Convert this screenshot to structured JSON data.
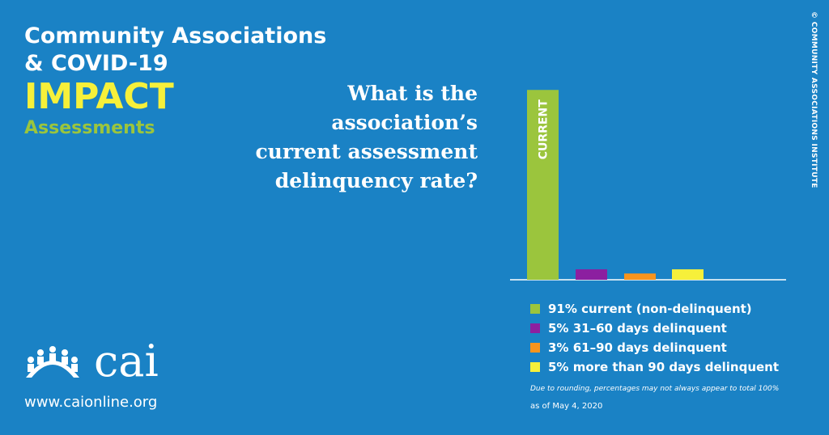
{
  "header": {
    "title_line1": "Community Associations",
    "title_line2": "& COVID-19",
    "impact": "IMPACT",
    "topic": "Assessments"
  },
  "question": {
    "line1": "What is the",
    "line2": "association’s",
    "line3": "current assessment",
    "line4": "delinquency rate?"
  },
  "copyright": "© COMMUNITY ASSOCIATIONS INSTITUTE",
  "chart_data": {
    "type": "bar",
    "categories": [
      "current",
      "31–60 days",
      "61–90 days",
      "more than 90 days"
    ],
    "values": [
      91,
      5,
      3,
      5
    ],
    "colors": [
      "#9bc53d",
      "#8c1fa0",
      "#f7941d",
      "#f6f03a"
    ],
    "bar_label": "CURRENT",
    "ylim": [
      0,
      100
    ],
    "grid": false
  },
  "legend": {
    "items": [
      {
        "label": "91% current (non-delinquent)",
        "color": "#9bc53d"
      },
      {
        "label": "5% 31–60 days delinquent",
        "color": "#8c1fa0"
      },
      {
        "label": "3% 61–90 days delinquent",
        "color": "#f7941d"
      },
      {
        "label": "5% more than 90 days delinquent",
        "color": "#f6f03a"
      }
    ]
  },
  "footnote": "Due to rounding, percentages may not always appear to total 100%",
  "date_note": "as of May 4, 2020",
  "logo": {
    "text": "cai",
    "icon": "people-arch-icon"
  },
  "website": "www.caionline.org",
  "colors": {
    "background": "#1a82c5",
    "accent_yellow": "#f6f03a",
    "accent_green": "#9bc53d"
  }
}
